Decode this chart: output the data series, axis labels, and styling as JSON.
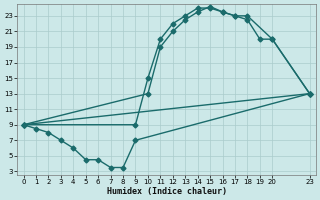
{
  "bg_color": "#cce8e8",
  "grid_color": "#aacccc",
  "line_color": "#1a6b6b",
  "xlabel": "Humidex (Indice chaleur)",
  "xlim": [
    -0.5,
    23.5
  ],
  "ylim": [
    2.5,
    24.5
  ],
  "xticks": [
    0,
    1,
    2,
    3,
    4,
    5,
    6,
    7,
    8,
    9,
    10,
    11,
    12,
    13,
    14,
    15,
    16,
    17,
    18,
    19,
    20,
    23
  ],
  "yticks": [
    3,
    5,
    7,
    9,
    11,
    13,
    15,
    17,
    19,
    21,
    23
  ],
  "curve1_x": [
    0,
    9,
    10,
    11,
    12,
    13,
    14,
    15,
    16,
    17,
    18,
    20,
    23
  ],
  "curve1_y": [
    9,
    9,
    15,
    20,
    22,
    23,
    24,
    24,
    23.5,
    23,
    23,
    20,
    13
  ],
  "curve2_x": [
    0,
    10,
    11,
    12,
    13,
    14,
    15,
    16,
    17,
    18,
    19,
    20,
    23
  ],
  "curve2_y": [
    9,
    13,
    19,
    21,
    22.5,
    23.5,
    24.2,
    23.5,
    23,
    22.5,
    20,
    20,
    13
  ],
  "curve3_x": [
    0,
    1,
    2,
    3,
    4,
    5,
    6,
    7,
    8,
    9,
    23
  ],
  "curve3_y": [
    9,
    8.5,
    8,
    7,
    6,
    4.5,
    4.5,
    3.5,
    3.5,
    7,
    13
  ],
  "curve4_x": [
    0,
    23
  ],
  "curve4_y": [
    9,
    13
  ],
  "markersize": 2.5,
  "linewidth": 1.0
}
